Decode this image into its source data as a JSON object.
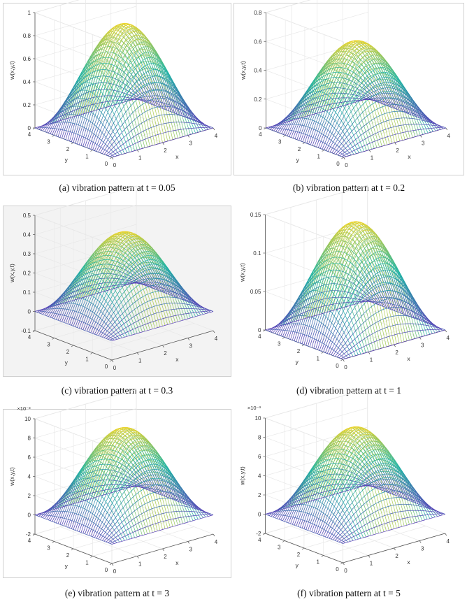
{
  "charts": [
    {
      "caption": "(a)  vibration pattern at t = 0.05"
    },
    {
      "caption": "(b)  vibration pattern at t = 0.2"
    },
    {
      "caption": "(c)  vibration pattern at t = 0.3"
    },
    {
      "caption": "(d)  vibration pattern at t = 1"
    },
    {
      "caption": "(e)  vibration pattern at t = 3"
    },
    {
      "caption": "(f)  vibration pattern at t = 5"
    }
  ],
  "colors": {
    "low": "#5a3fb8",
    "mid": "#1fb5a6",
    "high": "#f7d626",
    "frame": "#d0d0d0"
  },
  "chart_data": [
    {
      "type": "surface",
      "zlabel": "w(x,y,t)",
      "xlabel": "x",
      "ylabel": "y",
      "x_ticks": [
        "0",
        "1",
        "2",
        "3",
        "4"
      ],
      "y_ticks": [
        "0",
        "1",
        "2",
        "3",
        "4"
      ],
      "z_ticks": [
        "0",
        "0.2",
        "0.4",
        "0.6",
        "0.8",
        "1"
      ],
      "z_exponent": "",
      "xlim": [
        0,
        4
      ],
      "ylim": [
        0,
        4
      ],
      "zlim": [
        0,
        1
      ],
      "peak": 0.9,
      "grid": true,
      "surface": "w = A sin(pi x/4) sin(pi y/4)"
    },
    {
      "type": "surface",
      "zlabel": "w(x,y,t)",
      "xlabel": "x",
      "ylabel": "y",
      "x_ticks": [
        "0",
        "1",
        "2",
        "3",
        "4"
      ],
      "y_ticks": [
        "0",
        "1",
        "2",
        "3",
        "4"
      ],
      "z_ticks": [
        "0",
        "0.2",
        "0.4",
        "0.6",
        "0.8"
      ],
      "z_exponent": "",
      "xlim": [
        0,
        4
      ],
      "ylim": [
        0,
        4
      ],
      "zlim": [
        0,
        0.8
      ],
      "peak": 0.6,
      "grid": true,
      "surface": "w = A sin(pi x/4) sin(pi y/4)"
    },
    {
      "type": "surface",
      "zlabel": "w(x,y,t)",
      "xlabel": "x",
      "ylabel": "y",
      "x_ticks": [
        "0",
        "1",
        "2",
        "3",
        "4"
      ],
      "y_ticks": [
        "0",
        "1",
        "2",
        "3",
        "4"
      ],
      "z_ticks": [
        "-0.1",
        "0",
        "0.1",
        "0.2",
        "0.3",
        "0.4",
        "0.5"
      ],
      "z_exponent": "",
      "xlim": [
        0,
        4
      ],
      "ylim": [
        0,
        4
      ],
      "zlim": [
        -0.1,
        0.5
      ],
      "peak": 0.41,
      "grid": true,
      "surface": "w = A sin(pi x/4) sin(pi y/4)"
    },
    {
      "type": "surface",
      "zlabel": "w(x,y,t)",
      "xlabel": "x",
      "ylabel": "y",
      "x_ticks": [
        "0",
        "1",
        "2",
        "3",
        "4"
      ],
      "y_ticks": [
        "0",
        "1",
        "2",
        "3",
        "4"
      ],
      "z_ticks": [
        "0",
        "0.05",
        "0.1",
        "0.15"
      ],
      "z_exponent": "",
      "xlim": [
        0,
        4
      ],
      "ylim": [
        0,
        4
      ],
      "zlim": [
        0,
        0.15
      ],
      "peak": 0.14,
      "grid": true,
      "surface": "w = A sin(pi x/4) sin(pi y/4)"
    },
    {
      "type": "surface",
      "zlabel": "w(x,y,t)",
      "xlabel": "x",
      "ylabel": "y",
      "x_ticks": [
        "0",
        "1",
        "2",
        "3",
        "4"
      ],
      "y_ticks": [
        "0",
        "1",
        "2",
        "3",
        "4"
      ],
      "z_ticks": [
        "-2",
        "0",
        "2",
        "4",
        "6",
        "8",
        "10"
      ],
      "z_exponent": "×10⁻³",
      "xlim": [
        0,
        4
      ],
      "ylim": [
        0,
        4
      ],
      "zlim": [
        -2,
        10
      ],
      "peak": 9,
      "grid": true,
      "surface": "w = A sin(pi x/4) sin(pi y/4)"
    },
    {
      "type": "surface",
      "zlabel": "w(x,y,t)",
      "xlabel": "x",
      "ylabel": "y",
      "x_ticks": [
        "0",
        "1",
        "2",
        "3",
        "4"
      ],
      "y_ticks": [
        "0",
        "1",
        "2",
        "3",
        "4"
      ],
      "z_ticks": [
        "-2",
        "0",
        "2",
        "4",
        "6",
        "8",
        "10"
      ],
      "z_exponent": "×10⁻³",
      "xlim": [
        0,
        4
      ],
      "ylim": [
        0,
        4
      ],
      "zlim": [
        -2,
        10
      ],
      "peak": 9,
      "grid": true,
      "surface": "w = A sin(pi x/4) sin(pi y/4)"
    }
  ]
}
